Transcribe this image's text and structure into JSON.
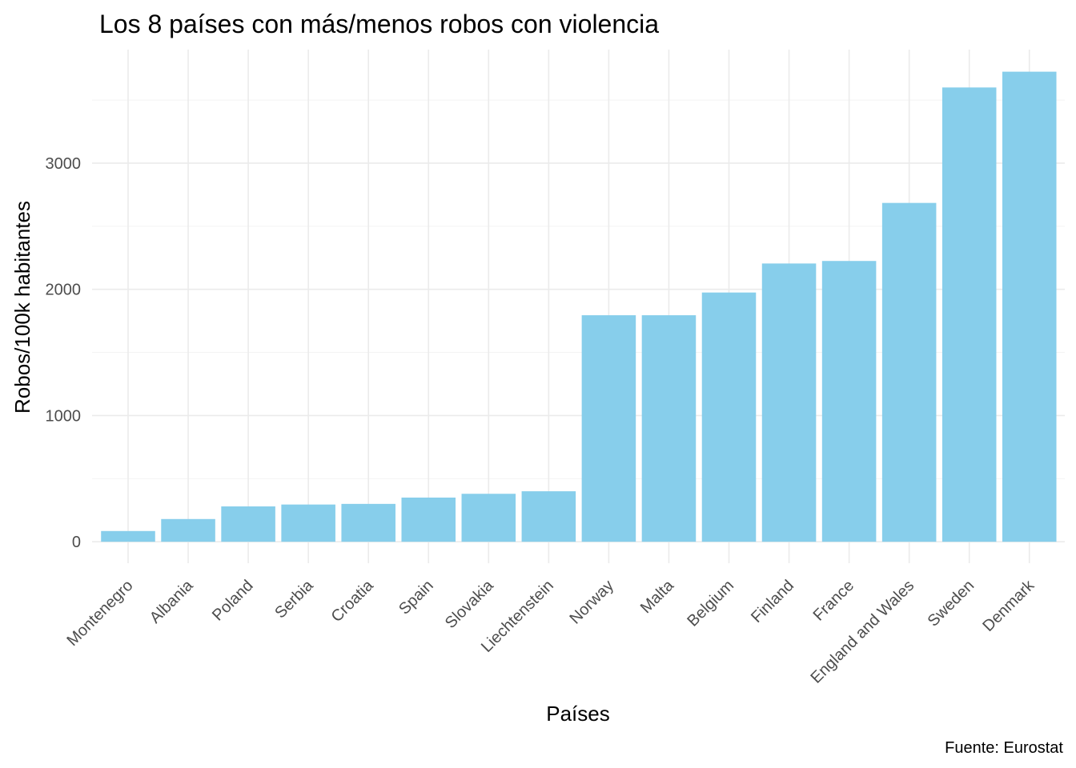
{
  "chart_data": {
    "type": "bar",
    "title": "Los 8 países con más/menos robos con violencia",
    "xlabel": "Países",
    "ylabel": "Robos/100k habitantes",
    "caption": "Fuente: Eurostat",
    "categories": [
      "Montenegro",
      "Albania",
      "Poland",
      "Serbia",
      "Croatia",
      "Spain",
      "Slovakia",
      "Liechtenstein",
      "Norway",
      "Malta",
      "Belgium",
      "Finland",
      "France",
      "England and Wales",
      "Sweden",
      "Denmark"
    ],
    "values": [
      85,
      180,
      280,
      295,
      300,
      350,
      380,
      400,
      1795,
      1795,
      1975,
      2205,
      2225,
      2685,
      3600,
      3725
    ],
    "ylim": [
      -170,
      3900
    ],
    "yticks": [
      0,
      1000,
      2000,
      3000
    ],
    "grid": true,
    "bar_color": "#87CEEB"
  }
}
